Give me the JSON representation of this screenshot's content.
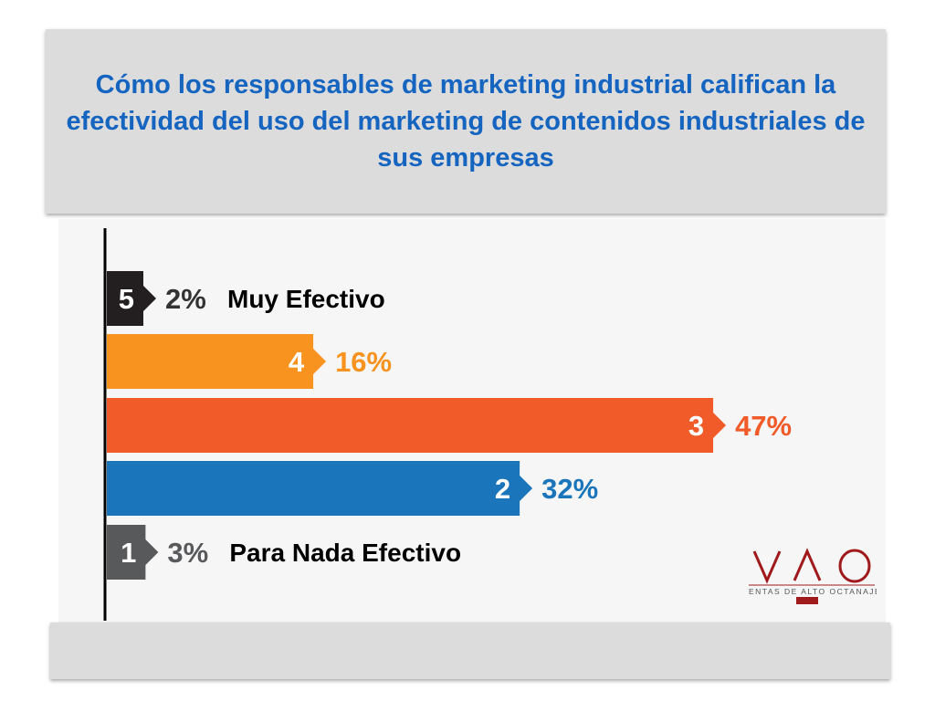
{
  "title": "Cómo los responsables de marketing industrial califican la efectividad del uso del marketing de contenidos industriales de sus empresas",
  "chart_data": {
    "type": "bar",
    "orientation": "horizontal",
    "categories": [
      "5",
      "4",
      "3",
      "2",
      "1"
    ],
    "values": [
      2,
      16,
      47,
      32,
      3
    ],
    "value_labels": [
      "2%",
      "16%",
      "47%",
      "32%",
      "3%"
    ],
    "category_descriptions": [
      "Muy Efectivo",
      "",
      "",
      "",
      "Para Nada Efectivo"
    ],
    "colors": [
      "#231f20",
      "#f7931e",
      "#f15a29",
      "#1b75bb",
      "#58595b"
    ],
    "pct_label_colors": [
      "#333333",
      "#f7931e",
      "#f15a29",
      "#1b75bb",
      "#58595b"
    ],
    "xlim": [
      0,
      50
    ],
    "grid": false,
    "legend": "none"
  },
  "logo": {
    "mark": "VΛO",
    "tagline": "VENTAS DE ALTO OCTANAJE",
    "color": "#a0191c"
  }
}
